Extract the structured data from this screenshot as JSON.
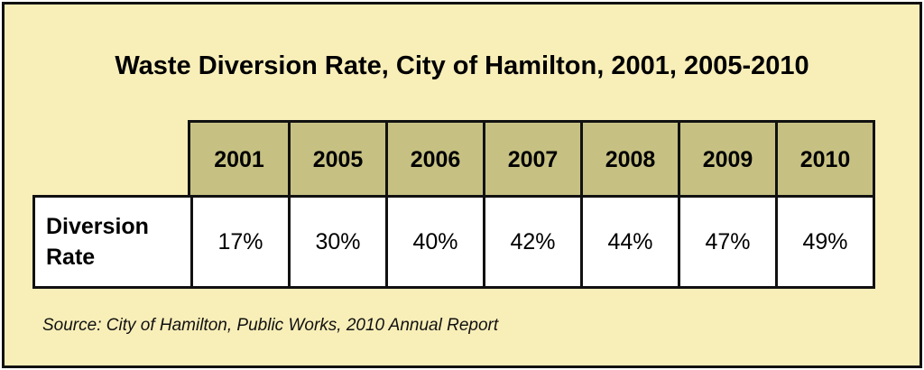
{
  "chart_data": {
    "type": "table",
    "title": "Waste Diversion Rate, City of Hamilton, 2001, 2005-2010",
    "columns": [
      "2001",
      "2005",
      "2006",
      "2007",
      "2008",
      "2009",
      "2010"
    ],
    "row_label": "Diversion\nRate",
    "values": [
      17,
      30,
      40,
      42,
      44,
      47,
      49
    ],
    "value_labels": [
      "17%",
      "30%",
      "40%",
      "42%",
      "44%",
      "47%",
      "49%"
    ],
    "unit": "%",
    "source": "Source: City of Hamilton, Public Works, 2010 Annual Report"
  },
  "colors": {
    "panel_background": "#f8eeb8",
    "header_background": "#c6c182",
    "data_background": "#ffffff",
    "border": "#111111"
  }
}
